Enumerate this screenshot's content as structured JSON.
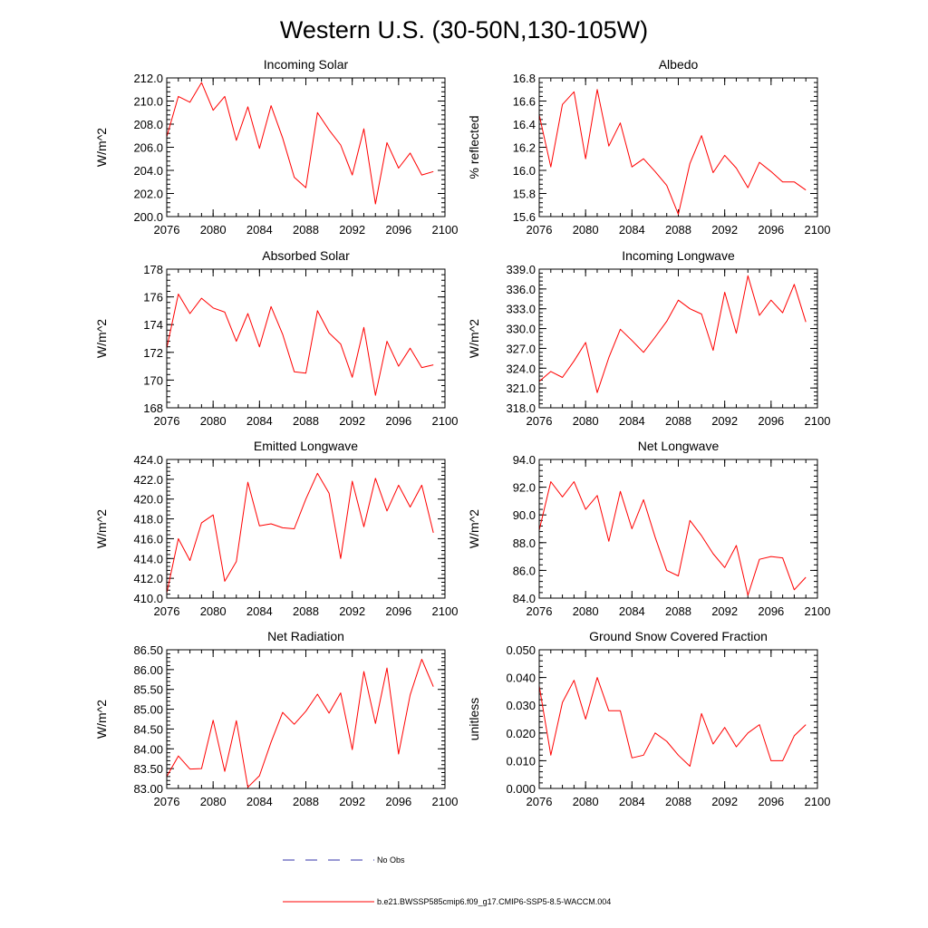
{
  "title": "Western U.S. (30-50N,130-105W)",
  "colors": {
    "model": "#ff0000",
    "obs": "#3333aa",
    "axis": "#000000"
  },
  "legend": {
    "obs_label": "No Obs",
    "model_label": "b.e21.BWSSP585cmip6.f09_g17.CMIP6-SSP5-8.5-WACCM.004"
  },
  "chart_data": [
    {
      "type": "line",
      "title": "Incoming Solar",
      "ylabel": "W/m^2",
      "xlim": [
        2076,
        2100
      ],
      "ylim": [
        200,
        212
      ],
      "yticks": [
        200,
        202,
        204,
        206,
        208,
        210,
        212
      ],
      "ydecimals": 1,
      "xticks": [
        2076,
        2080,
        2084,
        2088,
        2092,
        2096,
        2100
      ],
      "x": [
        2076,
        2077,
        2078,
        2079,
        2080,
        2081,
        2082,
        2083,
        2084,
        2085,
        2086,
        2087,
        2088,
        2089,
        2090,
        2091,
        2092,
        2093,
        2094,
        2095,
        2096,
        2097,
        2098,
        2099
      ],
      "series": [
        {
          "name": "b.e21.BWSSP585cmip6.f09_g17.CMIP6-SSP5-8.5-WACCM.004",
          "values": [
            206.9,
            210.4,
            209.9,
            211.6,
            209.2,
            210.4,
            206.6,
            209.5,
            205.9,
            209.6,
            206.8,
            203.4,
            202.5,
            209.0,
            207.5,
            206.2,
            203.6,
            207.6,
            201.1,
            206.4,
            204.2,
            205.5,
            203.6,
            203.9
          ]
        }
      ]
    },
    {
      "type": "line",
      "title": "Albedo",
      "ylabel": "% reflected",
      "xlim": [
        2076,
        2100
      ],
      "ylim": [
        15.6,
        16.8
      ],
      "yticks": [
        15.6,
        15.8,
        16.0,
        16.2,
        16.4,
        16.6,
        16.8
      ],
      "ydecimals": 1,
      "xticks": [
        2076,
        2080,
        2084,
        2088,
        2092,
        2096,
        2100
      ],
      "x": [
        2076,
        2077,
        2078,
        2079,
        2080,
        2081,
        2082,
        2083,
        2084,
        2085,
        2086,
        2087,
        2088,
        2089,
        2090,
        2091,
        2092,
        2093,
        2094,
        2095,
        2096,
        2097,
        2098,
        2099
      ],
      "series": [
        {
          "name": "b.e21.BWSSP585cmip6.f09_g17.CMIP6-SSP5-8.5-WACCM.004",
          "values": [
            16.48,
            16.03,
            16.57,
            16.68,
            16.1,
            16.7,
            16.21,
            16.41,
            16.03,
            16.1,
            15.99,
            15.87,
            15.62,
            16.06,
            16.3,
            15.98,
            16.13,
            16.02,
            15.85,
            16.07,
            15.99,
            15.9,
            15.9,
            15.83
          ]
        }
      ]
    },
    {
      "type": "line",
      "title": "Absorbed Solar",
      "ylabel": "W/m^2",
      "xlim": [
        2076,
        2100
      ],
      "ylim": [
        168,
        178
      ],
      "yticks": [
        168,
        170,
        172,
        174,
        176,
        178
      ],
      "ydecimals": 0,
      "xticks": [
        2076,
        2080,
        2084,
        2088,
        2092,
        2096,
        2100
      ],
      "x": [
        2076,
        2077,
        2078,
        2079,
        2080,
        2081,
        2082,
        2083,
        2084,
        2085,
        2086,
        2087,
        2088,
        2089,
        2090,
        2091,
        2092,
        2093,
        2094,
        2095,
        2096,
        2097,
        2098,
        2099
      ],
      "series": [
        {
          "name": "b.e21.BWSSP585cmip6.f09_g17.CMIP6-SSP5-8.5-WACCM.004",
          "values": [
            172.3,
            176.2,
            174.8,
            175.9,
            175.2,
            174.9,
            172.8,
            174.8,
            172.4,
            175.3,
            173.3,
            170.6,
            170.5,
            175.0,
            173.4,
            172.6,
            170.2,
            173.8,
            168.9,
            172.8,
            171.0,
            172.3,
            170.9,
            171.1
          ]
        }
      ]
    },
    {
      "type": "line",
      "title": "Incoming Longwave",
      "ylabel": "W/m^2",
      "xlim": [
        2076,
        2100
      ],
      "ylim": [
        318,
        339
      ],
      "yticks": [
        318,
        321,
        324,
        327,
        330,
        333,
        336,
        339
      ],
      "ydecimals": 1,
      "xticks": [
        2076,
        2080,
        2084,
        2088,
        2092,
        2096,
        2100
      ],
      "x": [
        2076,
        2077,
        2078,
        2079,
        2080,
        2081,
        2082,
        2083,
        2084,
        2085,
        2086,
        2087,
        2088,
        2089,
        2090,
        2091,
        2092,
        2093,
        2094,
        2095,
        2096,
        2097,
        2098,
        2099
      ],
      "series": [
        {
          "name": "b.e21.BWSSP585cmip6.f09_g17.CMIP6-SSP5-8.5-WACCM.004",
          "values": [
            322.0,
            323.5,
            322.6,
            325.1,
            327.9,
            320.3,
            325.6,
            329.9,
            328.2,
            326.4,
            328.7,
            331.1,
            334.3,
            333.0,
            332.2,
            326.7,
            335.5,
            329.3,
            338.0,
            332.0,
            334.3,
            332.4,
            336.7,
            331.0
          ]
        }
      ]
    },
    {
      "type": "line",
      "title": "Emitted Longwave",
      "ylabel": "W/m^2",
      "xlim": [
        2076,
        2100
      ],
      "ylim": [
        410,
        424
      ],
      "yticks": [
        410,
        412,
        414,
        416,
        418,
        420,
        422,
        424
      ],
      "ydecimals": 1,
      "xticks": [
        2076,
        2080,
        2084,
        2088,
        2092,
        2096,
        2100
      ],
      "x": [
        2076,
        2077,
        2078,
        2079,
        2080,
        2081,
        2082,
        2083,
        2084,
        2085,
        2086,
        2087,
        2088,
        2089,
        2090,
        2091,
        2092,
        2093,
        2094,
        2095,
        2096,
        2097,
        2098,
        2099
      ],
      "series": [
        {
          "name": "b.e21.BWSSP585cmip6.f09_g17.CMIP6-SSP5-8.5-WACCM.004",
          "values": [
            410.5,
            416.0,
            413.8,
            417.6,
            418.4,
            411.7,
            413.7,
            421.7,
            417.3,
            417.5,
            417.1,
            417.0,
            420.0,
            422.6,
            420.6,
            414.0,
            421.8,
            417.2,
            422.1,
            418.8,
            421.4,
            419.2,
            421.4,
            416.6
          ]
        }
      ]
    },
    {
      "type": "line",
      "title": "Net Longwave",
      "ylabel": "W/m^2",
      "xlim": [
        2076,
        2100
      ],
      "ylim": [
        84,
        94
      ],
      "yticks": [
        84,
        86,
        88,
        90,
        92,
        94
      ],
      "ydecimals": 1,
      "xticks": [
        2076,
        2080,
        2084,
        2088,
        2092,
        2096,
        2100
      ],
      "x": [
        2076,
        2077,
        2078,
        2079,
        2080,
        2081,
        2082,
        2083,
        2084,
        2085,
        2086,
        2087,
        2088,
        2089,
        2090,
        2091,
        2092,
        2093,
        2094,
        2095,
        2096,
        2097,
        2098,
        2099
      ],
      "series": [
        {
          "name": "b.e21.BWSSP585cmip6.f09_g17.CMIP6-SSP5-8.5-WACCM.004",
          "values": [
            88.9,
            92.4,
            91.3,
            92.4,
            90.4,
            91.4,
            88.1,
            91.7,
            89.0,
            91.1,
            88.4,
            86.0,
            85.6,
            89.6,
            88.5,
            87.2,
            86.2,
            87.8,
            84.2,
            86.8,
            87.0,
            86.9,
            84.6,
            85.5
          ]
        }
      ]
    },
    {
      "type": "line",
      "title": "Net Radiation",
      "ylabel": "W/m^2",
      "xlim": [
        2076,
        2100
      ],
      "ylim": [
        83,
        86.5
      ],
      "yticks": [
        83,
        83.5,
        84,
        84.5,
        85,
        85.5,
        86,
        86.5
      ],
      "ydecimals": 2,
      "xticks": [
        2076,
        2080,
        2084,
        2088,
        2092,
        2096,
        2100
      ],
      "x": [
        2076,
        2077,
        2078,
        2079,
        2080,
        2081,
        2082,
        2083,
        2084,
        2085,
        2086,
        2087,
        2088,
        2089,
        2090,
        2091,
        2092,
        2093,
        2094,
        2095,
        2096,
        2097,
        2098,
        2099
      ],
      "series": [
        {
          "name": "b.e21.BWSSP585cmip6.f09_g17.CMIP6-SSP5-8.5-WACCM.004",
          "values": [
            83.3,
            83.82,
            83.49,
            83.5,
            84.72,
            83.43,
            84.71,
            83.03,
            83.32,
            84.17,
            84.92,
            84.62,
            84.95,
            85.38,
            84.9,
            85.41,
            83.98,
            85.95,
            84.64,
            86.04,
            83.87,
            85.36,
            86.26,
            85.57
          ]
        }
      ]
    },
    {
      "type": "line",
      "title": "Ground Snow Covered Fraction",
      "ylabel": "unitless",
      "xlim": [
        2076,
        2100
      ],
      "ylim": [
        0,
        0.05
      ],
      "yticks": [
        0,
        0.01,
        0.02,
        0.03,
        0.04,
        0.05
      ],
      "ydecimals": 3,
      "xticks": [
        2076,
        2080,
        2084,
        2088,
        2092,
        2096,
        2100
      ],
      "x": [
        2076,
        2077,
        2078,
        2079,
        2080,
        2081,
        2082,
        2083,
        2084,
        2085,
        2086,
        2087,
        2088,
        2089,
        2090,
        2091,
        2092,
        2093,
        2094,
        2095,
        2096,
        2097,
        2098,
        2099
      ],
      "series": [
        {
          "name": "b.e21.BWSSP585cmip6.f09_g17.CMIP6-SSP5-8.5-WACCM.004",
          "values": [
            0.037,
            0.012,
            0.031,
            0.039,
            0.025,
            0.04,
            0.028,
            0.028,
            0.011,
            0.012,
            0.02,
            0.017,
            0.012,
            0.008,
            0.027,
            0.016,
            0.022,
            0.015,
            0.02,
            0.023,
            0.01,
            0.01,
            0.019,
            0.023
          ]
        }
      ]
    }
  ]
}
